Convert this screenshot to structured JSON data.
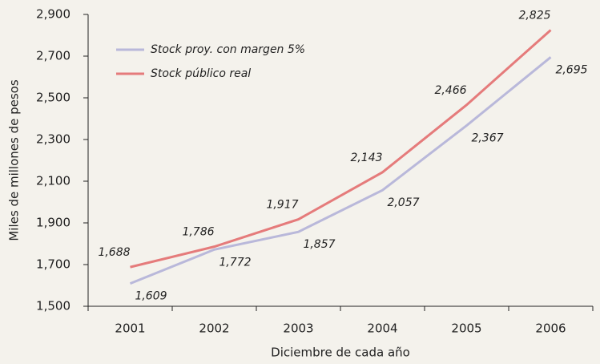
{
  "chart_data": {
    "type": "line",
    "y_label": "Miles de millones de pesos",
    "x_label": "Diciembre de cada año",
    "categories": [
      "2001",
      "2002",
      "2003",
      "2004",
      "2005",
      "2006"
    ],
    "series": [
      {
        "name": "Stock proy. con margen 5%",
        "color": "#b9b8da",
        "values": [
          1609,
          1772,
          1857,
          2057,
          2367,
          2695
        ],
        "value_labels": [
          "1,609",
          "1,772",
          "1,857",
          "2,057",
          "2,367",
          "2,695"
        ]
      },
      {
        "name": "Stock público real",
        "color": "#e57b7b",
        "values": [
          1688,
          1786,
          1917,
          2143,
          2466,
          2825
        ],
        "value_labels": [
          "1,688",
          "1,786",
          "1,917",
          "2,143",
          "2,466",
          "2,825"
        ]
      }
    ],
    "ylim": [
      1500,
      2900
    ],
    "yticks": [
      {
        "value": 1500,
        "label": "1,500"
      },
      {
        "value": 1700,
        "label": "1,700"
      },
      {
        "value": 1900,
        "label": "1,900"
      },
      {
        "value": 2100,
        "label": "2,100"
      },
      {
        "value": 2300,
        "label": "2,300"
      },
      {
        "value": 2500,
        "label": "2,500"
      },
      {
        "value": 2700,
        "label": "2,700"
      },
      {
        "value": 2900,
        "label": "2,900"
      }
    ],
    "legend": "upper left"
  }
}
